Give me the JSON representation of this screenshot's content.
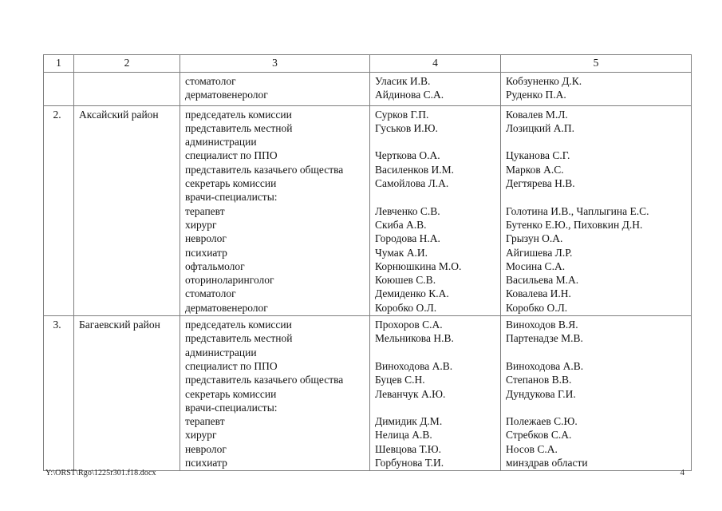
{
  "table": {
    "header": [
      "1",
      "2",
      "3",
      "4",
      "5"
    ],
    "rows": [
      {
        "num": "",
        "district": "",
        "entries": [
          {
            "role": "стоматолог",
            "col4": "Уласик И.В.",
            "col5": "Кобзуненко Д.К."
          },
          {
            "role": "дерматовенеролог",
            "col4": "Айдинова С.А.",
            "col5": "Руденко П.А."
          }
        ]
      },
      {
        "num": "2.",
        "district": "Аксайский район",
        "entries": [
          {
            "role": "председатель комиссии",
            "col4": "Сурков Г.П.",
            "col5": "Ковалев М.Л."
          },
          {
            "role": "представитель местной",
            "col4": "Гуськов И.Ю.",
            "col5": "Лозицкий А.П."
          },
          {
            "role": "администрации",
            "col4": "",
            "col5": ""
          },
          {
            "role": "специалист по ППО",
            "col4": "Черткова О.А.",
            "col5": "Цуканова С.Г."
          },
          {
            "role": "представитель казачьего общества",
            "col4": "Василенков И.М.",
            "col5": "Марков А.С."
          },
          {
            "role": "секретарь комиссии",
            "col4": "Самойлова Л.А.",
            "col5": "Дегтярева Н.В."
          },
          {
            "role": "врачи-специалисты:",
            "col4": "",
            "col5": ""
          },
          {
            "role": "терапевт",
            "col4": "Левченко С.В.",
            "col5": "Голотина И.В., Чаплыгина Е.С."
          },
          {
            "role": "хирург",
            "col4": "Скиба А.В.",
            "col5": "Бутенко Е.Ю., Пиховкин Д.Н."
          },
          {
            "role": "невролог",
            "col4": "Городова Н.А.",
            "col5": "Грызун О.А."
          },
          {
            "role": "психиатр",
            "col4": "Чумак А.И.",
            "col5": "Айгишева Л.Р."
          },
          {
            "role": "офтальмолог",
            "col4": "Корнюшкина М.О.",
            "col5": "Мосина С.А."
          },
          {
            "role": "оториноларинголог",
            "col4": "Коюшев С.В.",
            "col5": "Васильева М.А."
          },
          {
            "role": "стоматолог",
            "col4": "Демиденко К.А.",
            "col5": "Ковалева И.Н."
          },
          {
            "role": "дерматовенеролог",
            "col4": "Коробко О.Л.",
            "col5": "Коробко О.Л."
          }
        ]
      },
      {
        "num": "3.",
        "district": "Багаевский район",
        "entries": [
          {
            "role": "председатель комиссии",
            "col4": "Прохоров С.А.",
            "col5": "Виноходов В.Я."
          },
          {
            "role": "представитель местной",
            "col4": "Мельникова Н.В.",
            "col5": "Партенадзе М.В."
          },
          {
            "role": "администрации",
            "col4": "",
            "col5": ""
          },
          {
            "role": "специалист по ППО",
            "col4": "Виноходова А.В.",
            "col5": "Виноходова А.В."
          },
          {
            "role": "представитель казачьего общества",
            "col4": "Буцев С.Н.",
            "col5": "Степанов В.В."
          },
          {
            "role": "секретарь комиссии",
            "col4": "Леванчук А.Ю.",
            "col5": "Дундукова Г.И."
          },
          {
            "role": "врачи-специалисты:",
            "col4": "",
            "col5": ""
          },
          {
            "role": "терапевт",
            "col4": "Димидик Д.М.",
            "col5": "Полежаев С.Ю."
          },
          {
            "role": "хирург",
            "col4": "Нелица А.В.",
            "col5": "Стребков С.А."
          },
          {
            "role": "невролог",
            "col4": "Шевцова Т.Ю.",
            "col5": "Носов С.А."
          },
          {
            "role": "психиатр",
            "col4": "Горбунова Т.И.",
            "col5": "минздрав области"
          }
        ]
      }
    ]
  },
  "footer": {
    "file_path": "Y:\\ORST\\Rgo\\1225r301.f18.docx",
    "page_number": "4"
  }
}
